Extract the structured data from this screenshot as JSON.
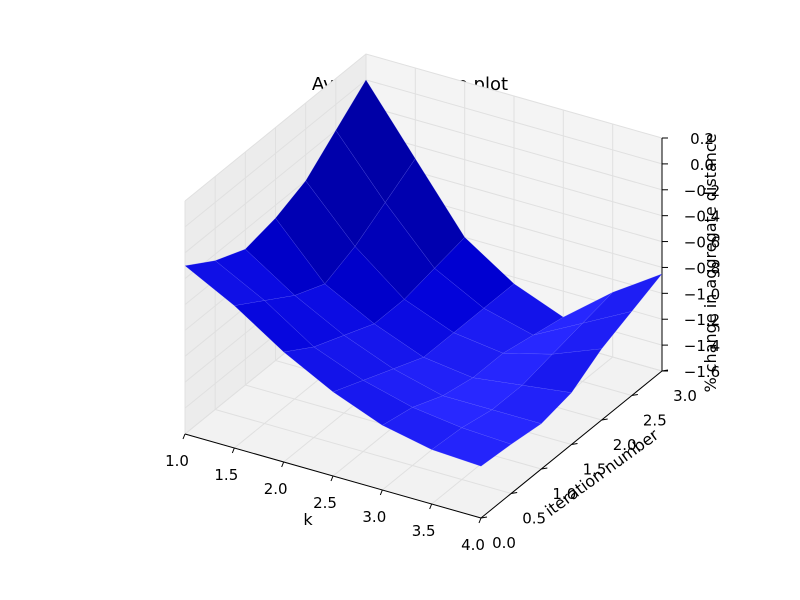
{
  "chart_data": {
    "type": "surface3d",
    "title": "Average distance plot",
    "xlabel": "k",
    "ylabel": "iteration number",
    "zlabel": "% change in aggregate distance",
    "x_ticks": [
      "1.0",
      "1.5",
      "2.0",
      "2.5",
      "3.0",
      "3.5",
      "4.0"
    ],
    "y_ticks": [
      "0.0",
      "0.5",
      "1.0",
      "1.5",
      "2.0",
      "2.5",
      "3.0"
    ],
    "z_ticks": [
      "0.2",
      "0.0",
      "−0.2",
      "−0.4",
      "−0.6",
      "−0.8",
      "−1.0",
      "−1.2",
      "−1.4",
      "−1.6"
    ],
    "xlim": [
      1,
      4
    ],
    "ylim": [
      0,
      3
    ],
    "zlim": [
      -1.6,
      0.2
    ],
    "grid": true,
    "surface_color": "#0000ff",
    "x": [
      1.0,
      1.5,
      2.0,
      2.5,
      3.0,
      3.5,
      4.0
    ],
    "y": [
      0.0,
      0.5,
      1.0,
      1.5,
      2.0,
      2.5,
      3.0
    ],
    "z": [
      [
        -0.3,
        -0.5,
        -0.75,
        -0.95,
        -1.1,
        -1.18,
        -1.2
      ],
      [
        -0.45,
        -0.65,
        -0.9,
        -1.05,
        -1.15,
        -1.2,
        -1.22
      ],
      [
        -0.55,
        -0.8,
        -1.0,
        -1.15,
        -1.25,
        -1.25,
        -1.25
      ],
      [
        -0.5,
        -0.9,
        -1.1,
        -1.25,
        -1.3,
        -1.25,
        -1.2
      ],
      [
        -0.4,
        -0.8,
        -1.1,
        -1.25,
        -1.3,
        -1.2,
        -1.05
      ],
      [
        -0.2,
        -0.65,
        -1.05,
        -1.25,
        -1.35,
        -1.15,
        -0.95
      ],
      [
        0.0,
        -0.5,
        -1.0,
        -1.25,
        -1.4,
        -1.1,
        -0.85
      ]
    ]
  }
}
